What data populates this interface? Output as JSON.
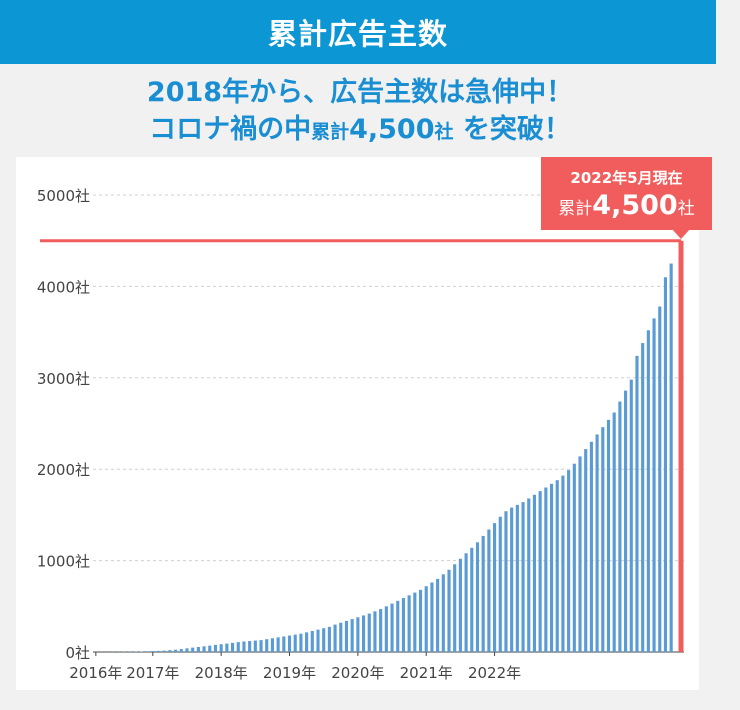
{
  "header": {
    "title": "累計広告主数"
  },
  "headline": {
    "line1": "2018年から、広告主数は急伸中！",
    "line2_a": "コロナ禍の中",
    "line2_b": "累計",
    "line2_c": "4,500",
    "line2_d": "社",
    "line2_e": " を突破！"
  },
  "callout": {
    "date": "2022年5月現在",
    "prefix": "累計",
    "value": "4,500",
    "suffix": "社"
  },
  "colors": {
    "bar": "#5b9bd5",
    "highlight": "#f15d5c",
    "accent": "#1a8ed2",
    "header": "#0d96d4"
  },
  "chart_data": {
    "type": "bar",
    "title": "累計広告主数",
    "xlabel": "",
    "ylabel": "",
    "ylim": [
      0,
      5000
    ],
    "y_ticks": [
      0,
      1000,
      2000,
      3000,
      4000,
      5000
    ],
    "y_tick_labels": [
      "0社",
      "1000社",
      "2000社",
      "3000社",
      "4000社",
      "5000社"
    ],
    "x_tick_labels": [
      "2016年",
      "2017年",
      "2018年",
      "2019年",
      "2020年",
      "2021年",
      "2022年"
    ],
    "x_tick_month_index": [
      0,
      10,
      22,
      34,
      46,
      58,
      70
    ],
    "start": "2016-01",
    "values": [
      1,
      1,
      1,
      2,
      2,
      3,
      3,
      4,
      5,
      8,
      10,
      12,
      15,
      20,
      25,
      32,
      40,
      48,
      55,
      62,
      70,
      78,
      85,
      92,
      100,
      108,
      115,
      120,
      125,
      130,
      140,
      150,
      160,
      170,
      180,
      190,
      200,
      215,
      230,
      245,
      260,
      275,
      300,
      320,
      340,
      360,
      380,
      400,
      420,
      445,
      470,
      500,
      530,
      560,
      590,
      620,
      650,
      680,
      720,
      760,
      800,
      850,
      900,
      960,
      1020,
      1080,
      1140,
      1200,
      1270,
      1340,
      1410,
      1480,
      1540,
      1580,
      1610,
      1640,
      1680,
      1720,
      1760,
      1800,
      1840,
      1880,
      1930,
      1990,
      2060,
      2140,
      2220,
      2300,
      2380,
      2460,
      2540,
      2620,
      2740,
      2860,
      2980,
      3240,
      3380,
      3520,
      3650,
      3780,
      4100,
      4250
    ],
    "highlight_value": 4500,
    "highlight_label": "2022年5月現在 累計4,500社"
  }
}
